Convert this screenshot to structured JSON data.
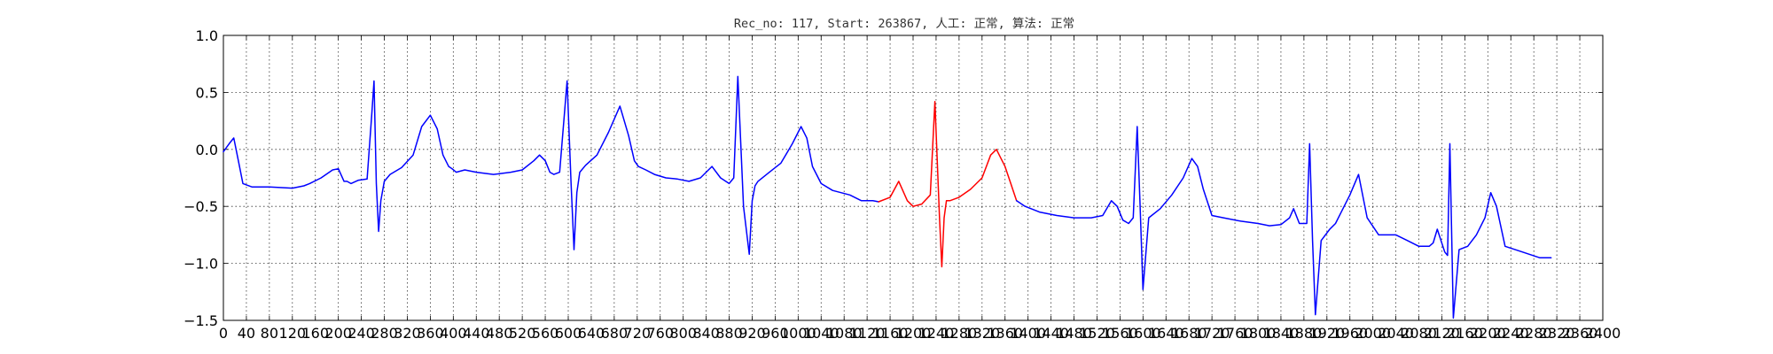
{
  "chart_data": {
    "type": "line",
    "title": "Rec_no: 117, Start: 263867, 人工: 正常, 算法: 正常",
    "xlabel": "",
    "ylabel": "",
    "xlim": [
      0,
      2400
    ],
    "ylim": [
      -1.5,
      1.0
    ],
    "grid": true,
    "yticks": [
      1.0,
      0.5,
      0.0,
      -0.5,
      -1.0,
      -1.5
    ],
    "ytick_labels": [
      "1.0",
      "0.5",
      "0.0",
      "−0.5",
      "−1.0",
      "−1.5"
    ],
    "xticks": [
      0,
      40,
      80,
      120,
      160,
      200,
      240,
      280,
      320,
      360,
      400,
      440,
      480,
      520,
      560,
      600,
      640,
      680,
      720,
      760,
      800,
      840,
      880,
      920,
      960,
      1000,
      1040,
      1080,
      1120,
      1160,
      1200,
      1240,
      1280,
      1320,
      1360,
      1400,
      1440,
      1480,
      1520,
      1560,
      1600,
      1640,
      1680,
      1720,
      1760,
      1800,
      1840,
      1880,
      1920,
      1960,
      2000,
      2040,
      2080,
      2120,
      2160,
      2200,
      2240,
      2280,
      2320,
      2360,
      2400
    ],
    "xtick_labels": [
      "0",
      "40",
      "80",
      "120",
      "160",
      "200",
      "240",
      "280",
      "320",
      "360",
      "400",
      "440",
      "480",
      "520",
      "560",
      "600",
      "640",
      "680",
      "720",
      "760",
      "800",
      "840",
      "880",
      "920",
      "960",
      "1000",
      "1040",
      "1080",
      "1120",
      "1160",
      "1200",
      "1240",
      "1280",
      "1320",
      "1360",
      "1400",
      "1440",
      "1480",
      "1520",
      "1560",
      "1600",
      "1640",
      "1680",
      "1720",
      "1760",
      "1800",
      "1840",
      "1880",
      "1920",
      "1960",
      "2000",
      "2040",
      "2080",
      "2120",
      "2160",
      "2200",
      "2240",
      "2280",
      "2320",
      "2360",
      "2400"
    ],
    "series": [
      {
        "color": "#0000ff",
        "x": [
          0,
          10,
          18,
          26,
          34,
          50,
          80,
          120,
          140,
          150,
          170,
          190,
          200,
          210,
          215,
          222,
          235,
          250,
          258,
          262,
          266,
          270,
          274,
          280,
          290,
          310,
          330,
          345,
          360,
          372,
          382,
          392,
          398,
          405,
          420,
          440,
          470,
          500,
          520,
          540,
          550,
          560,
          568,
          575,
          585,
          598,
          605,
          610,
          615,
          620,
          630,
          650,
          670,
          690,
          705,
          715,
          722,
          735,
          750,
          770,
          790,
          810,
          830,
          850,
          865,
          880,
          888,
          895,
          905,
          915,
          920,
          925,
          930,
          950,
          970,
          990,
          1005,
          1015,
          1025,
          1040,
          1060,
          1090,
          1110,
          1130,
          1140
        ],
        "y": [
          -0.02,
          0.05,
          0.1,
          -0.1,
          -0.3,
          -0.33,
          -0.33,
          -0.34,
          -0.32,
          -0.3,
          -0.25,
          -0.18,
          -0.17,
          -0.28,
          -0.28,
          -0.3,
          -0.27,
          -0.26,
          0.3,
          0.6,
          -0.3,
          -0.72,
          -0.45,
          -0.28,
          -0.22,
          -0.16,
          -0.05,
          0.2,
          0.3,
          0.18,
          -0.05,
          -0.15,
          -0.17,
          -0.2,
          -0.18,
          -0.2,
          -0.22,
          -0.2,
          -0.18,
          -0.1,
          -0.05,
          -0.1,
          -0.2,
          -0.22,
          -0.2,
          0.6,
          -0.3,
          -0.88,
          -0.38,
          -0.2,
          -0.14,
          -0.05,
          0.15,
          0.38,
          0.12,
          -0.1,
          -0.15,
          -0.18,
          -0.22,
          -0.25,
          -0.26,
          -0.28,
          -0.25,
          -0.15,
          -0.25,
          -0.3,
          -0.25,
          0.64,
          -0.5,
          -0.92,
          -0.45,
          -0.32,
          -0.28,
          -0.2,
          -0.12,
          0.05,
          0.2,
          0.1,
          -0.15,
          -0.3,
          -0.36,
          -0.4,
          -0.45,
          -0.45,
          -0.46
        ]
      },
      {
        "color": "#ff0000",
        "x": [
          1140,
          1160,
          1175,
          1190,
          1200,
          1215,
          1230,
          1238,
          1246,
          1250,
          1254,
          1258,
          1264,
          1280,
          1300,
          1320,
          1335,
          1345,
          1360,
          1370,
          1380
        ],
        "y": [
          -0.46,
          -0.42,
          -0.28,
          -0.45,
          -0.5,
          -0.48,
          -0.4,
          0.42,
          -0.6,
          -1.03,
          -0.6,
          -0.45,
          -0.45,
          -0.42,
          -0.35,
          -0.25,
          -0.05,
          0.0,
          -0.15,
          -0.3,
          -0.45
        ]
      },
      {
        "color": "#0000ff",
        "x": [
          1380,
          1395,
          1420,
          1450,
          1480,
          1510,
          1530,
          1545,
          1555,
          1565,
          1575,
          1583,
          1590,
          1595,
          1600,
          1610,
          1630,
          1650,
          1670,
          1685,
          1695,
          1705,
          1720,
          1740,
          1770,
          1800,
          1820,
          1840,
          1855,
          1862,
          1872,
          1885,
          1890,
          1895,
          1900,
          1910,
          1925,
          1935,
          1945,
          1960,
          1975,
          1990,
          2010,
          2040,
          2060,
          2080,
          2090,
          2098,
          2105,
          2112,
          2125,
          2130,
          2134,
          2140,
          2150,
          2165,
          2180,
          2195,
          2205,
          2215,
          2230,
          2260,
          2290,
          2310
        ],
        "y": [
          -0.45,
          -0.5,
          -0.55,
          -0.58,
          -0.6,
          -0.6,
          -0.58,
          -0.45,
          -0.5,
          -0.62,
          -0.65,
          -0.6,
          0.2,
          -0.5,
          -1.23,
          -0.6,
          -0.52,
          -0.4,
          -0.25,
          -0.08,
          -0.15,
          -0.35,
          -0.58,
          -0.6,
          -0.63,
          -0.65,
          -0.67,
          -0.66,
          -0.6,
          -0.52,
          -0.65,
          -0.65,
          0.05,
          -0.8,
          -1.45,
          -0.8,
          -0.7,
          -0.65,
          -0.55,
          -0.4,
          -0.22,
          -0.6,
          -0.75,
          -0.75,
          -0.8,
          -0.85,
          -0.85,
          -0.85,
          -0.82,
          -0.7,
          -0.9,
          -0.93,
          0.05,
          -1.48,
          -0.88,
          -0.85,
          -0.75,
          -0.6,
          -0.38,
          -0.5,
          -0.85,
          -0.9,
          -0.95,
          -0.95
        ]
      }
    ]
  }
}
